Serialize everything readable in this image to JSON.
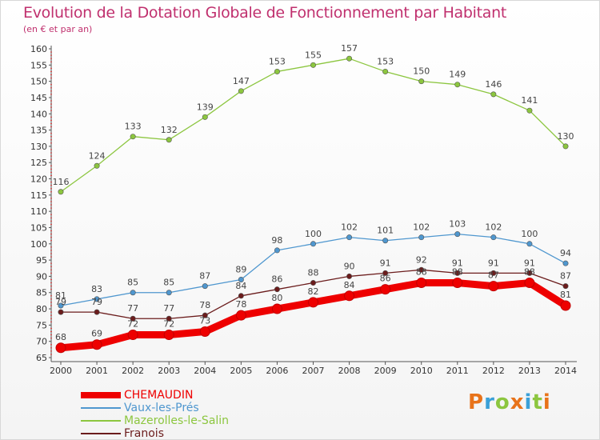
{
  "title": "Evolution de la Dotation Globale de Fonctionnement par Habitant",
  "subtitle": "(en € et par an)",
  "brand": {
    "text": "Proxiti",
    "colors": [
      "#e8731a",
      "#3ba0d8",
      "#8cc63f",
      "#e8731a",
      "#3ba0d8",
      "#8cc63f",
      "#e8731a"
    ]
  },
  "chart_data": {
    "type": "line",
    "title": "Evolution de la Dotation Globale de Fonctionnement par Habitant",
    "subtitle": "(en € et par an)",
    "x": [
      "2000",
      "2001",
      "2002",
      "2003",
      "2004",
      "2005",
      "2006",
      "2007",
      "2008",
      "2009",
      "2010",
      "2011",
      "2012",
      "2013",
      "2014"
    ],
    "ylim": [
      65,
      160
    ],
    "ytick_step": 5,
    "grid": false,
    "legend_position": "bottom-left",
    "series": [
      {
        "name": "CHEMAUDIN",
        "color": "#ee0000",
        "values": [
          68,
          69,
          72,
          72,
          73,
          78,
          80,
          82,
          84,
          86,
          88,
          88,
          87,
          88,
          81
        ]
      },
      {
        "name": "Vaux-les-Prés",
        "color": "#4f97cf",
        "values": [
          81,
          83,
          85,
          85,
          87,
          89,
          98,
          100,
          102,
          101,
          102,
          103,
          102,
          100,
          94
        ]
      },
      {
        "name": "Mazerolles-le-Salin",
        "color": "#8cc63f",
        "values": [
          116,
          124,
          133,
          132,
          139,
          147,
          153,
          155,
          157,
          153,
          150,
          149,
          146,
          141,
          130
        ]
      },
      {
        "name": "Franois",
        "color": "#6b1c1c",
        "values": [
          79,
          79,
          77,
          77,
          78,
          84,
          86,
          88,
          90,
          91,
          92,
          91,
          91,
          91,
          87
        ]
      }
    ]
  }
}
